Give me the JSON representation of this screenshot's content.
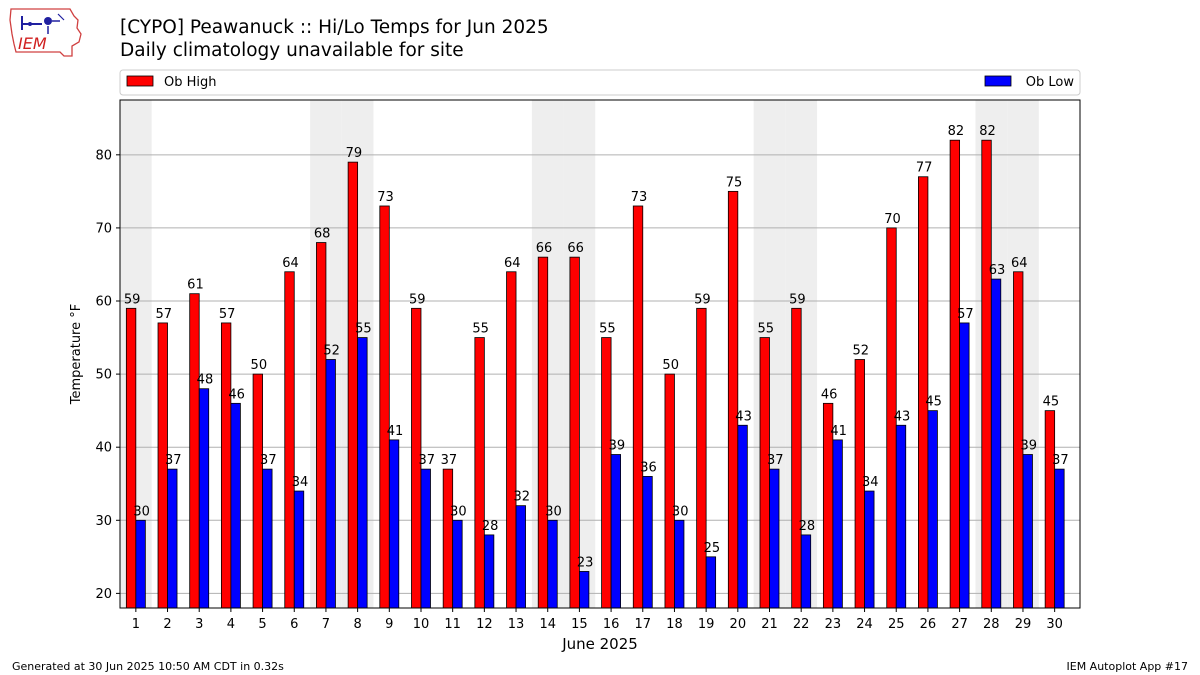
{
  "header": {
    "title_line1": "[CYPO] Peawanuck :: Hi/Lo Temps for Jun 2025",
    "title_line2": "Daily climatology unavailable for site"
  },
  "logo": {
    "text": "IEM"
  },
  "footer": {
    "generated": "Generated at 30 Jun 2025 10:50 AM CDT in 0.32s",
    "app": "IEM Autoplot App #17"
  },
  "colors": {
    "high": "#ff0000",
    "low": "#0000ff",
    "weekend_band": "#eeeeee",
    "grid": "#b0b0b0"
  },
  "chart_data": {
    "type": "bar",
    "xlabel": "June 2025",
    "ylabel": "Temperature °F",
    "ylim": [
      18,
      87.5
    ],
    "yticks": [
      20,
      30,
      40,
      50,
      60,
      70,
      80
    ],
    "grid": "horizontal",
    "legend_position": "top",
    "categories": [
      "1",
      "2",
      "3",
      "4",
      "5",
      "6",
      "7",
      "8",
      "9",
      "10",
      "11",
      "12",
      "13",
      "14",
      "15",
      "16",
      "17",
      "18",
      "19",
      "20",
      "21",
      "22",
      "23",
      "24",
      "25",
      "26",
      "27",
      "28",
      "29",
      "30"
    ],
    "series": [
      {
        "name": "Ob High",
        "color": "#ff0000",
        "values": [
          59,
          57,
          61,
          57,
          50,
          64,
          68,
          79,
          73,
          59,
          37,
          55,
          64,
          66,
          66,
          55,
          73,
          50,
          59,
          75,
          55,
          59,
          46,
          52,
          70,
          77,
          82,
          82,
          64,
          45
        ],
        "labels": [
          "59",
          "57",
          "61",
          "57",
          "50",
          "64",
          "68",
          "79",
          "73",
          "59",
          "37",
          "55",
          "64",
          "66",
          "66",
          "55",
          "73",
          "50",
          "59",
          "75",
          "55",
          "59",
          "46",
          "52",
          "70",
          "77",
          "82",
          "82",
          "64",
          "45"
        ]
      },
      {
        "name": "Ob Low",
        "color": "#0000ff",
        "values": [
          30,
          37,
          48,
          46,
          37,
          34,
          52,
          55,
          41,
          37,
          30,
          28,
          32,
          30,
          23,
          39,
          36,
          30,
          25,
          43,
          37,
          28,
          41,
          34,
          43,
          45,
          57,
          63,
          39,
          37
        ],
        "labels": [
          "30",
          "37",
          "48",
          "46",
          "37",
          "34",
          "52",
          "55",
          "41",
          "37",
          "30",
          "28",
          "32",
          "30",
          "23",
          "39",
          "36",
          "30",
          "25",
          "43",
          "37",
          "28",
          "41",
          "34",
          "43",
          "45",
          "57",
          "63",
          "39",
          "37"
        ]
      }
    ],
    "weekend_days": [
      1,
      7,
      8,
      14,
      15,
      21,
      22,
      28,
      29
    ]
  }
}
